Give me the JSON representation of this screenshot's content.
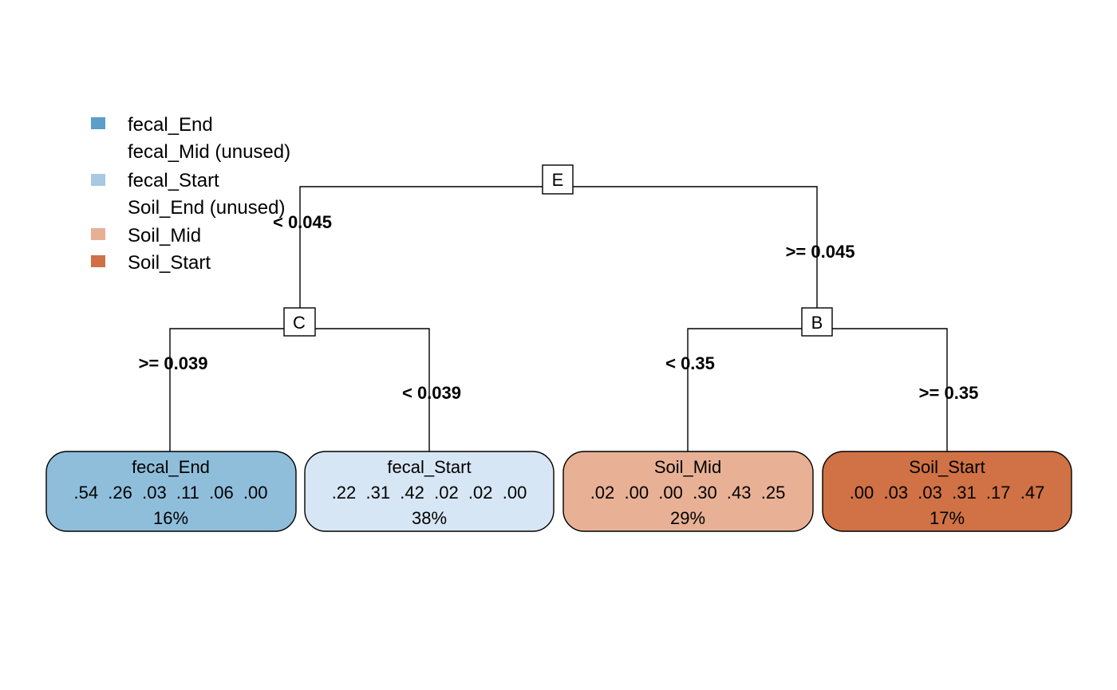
{
  "legend": {
    "items": [
      {
        "label": "fecal_End",
        "color": "#5b9ec9",
        "swatch": true
      },
      {
        "label": "fecal_Mid (unused)",
        "color": "",
        "swatch": false
      },
      {
        "label": "fecal_Start",
        "color": "#a8c8e4",
        "swatch": true
      },
      {
        "label": "Soil_End (unused)",
        "color": "",
        "swatch": false
      },
      {
        "label": "Soil_Mid",
        "color": "#e7b095",
        "swatch": true
      },
      {
        "label": "Soil_Start",
        "color": "#cf7146",
        "swatch": true
      }
    ]
  },
  "tree": {
    "splits": [
      {
        "id": "root",
        "label": "E",
        "left_label": "< 0.045",
        "right_label": ">= 0.045"
      },
      {
        "id": "node-c",
        "label": "C",
        "left_label": ">= 0.039",
        "right_label": "< 0.039"
      },
      {
        "id": "node-b",
        "label": "B",
        "left_label": "< 0.35",
        "right_label": ">= 0.35"
      }
    ],
    "leaves": [
      {
        "class": "fecal_End",
        "probs": ".54  .26  .03  .11  .06  .00",
        "percent": "16%",
        "color": "#8fbedb"
      },
      {
        "class": "fecal_Start",
        "probs": ".22  .31  .42  .02  .02  .00",
        "percent": "38%",
        "color": "#d7e6f4"
      },
      {
        "class": "Soil_Mid",
        "probs": ".02  .00  .00  .30  .43  .25",
        "percent": "29%",
        "color": "#e8b195"
      },
      {
        "class": "Soil_Start",
        "probs": ".00  .03  .03  .31  .17  .47",
        "percent": "17%",
        "color": "#d07245"
      }
    ]
  }
}
